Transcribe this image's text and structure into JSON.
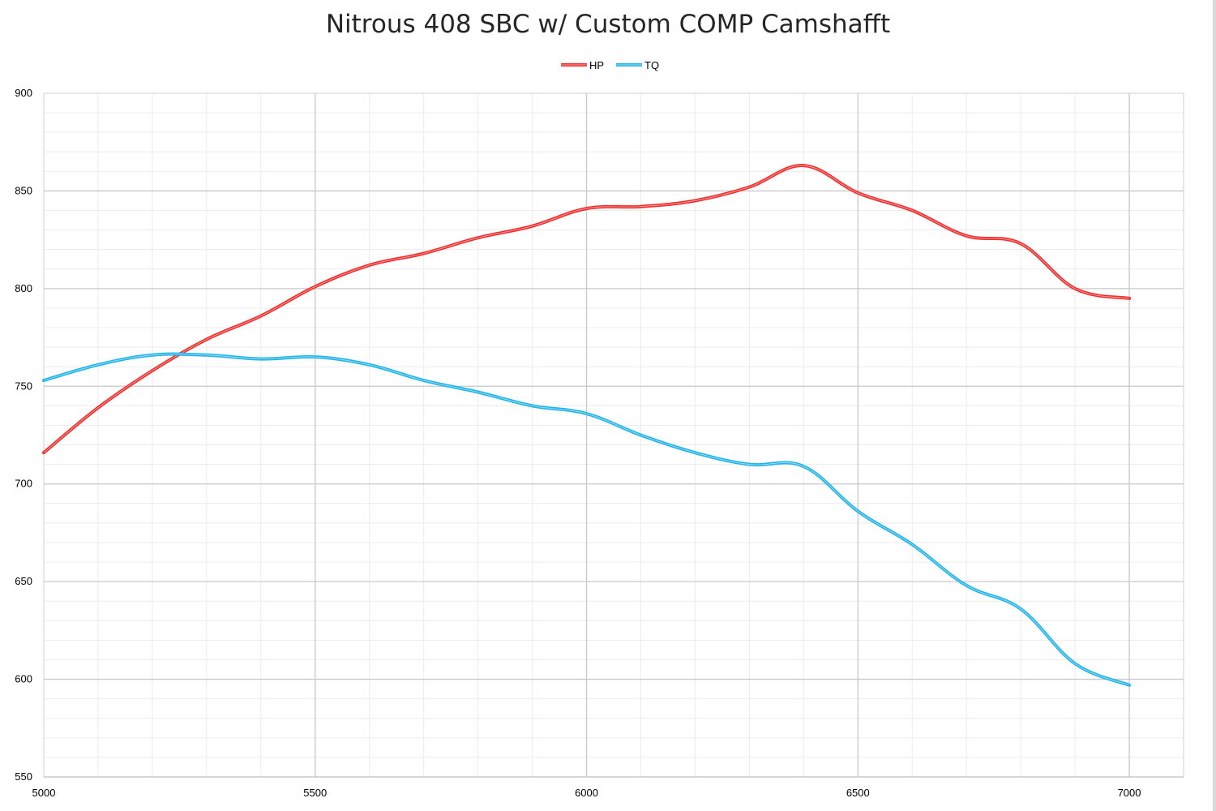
{
  "chart_data": {
    "type": "line",
    "title": "Nitrous 408 SBC w/ Custom COMP Camshafft",
    "xlabel": "",
    "ylabel": "",
    "xlim": [
      5000,
      7100
    ],
    "ylim": [
      550,
      900
    ],
    "x_ticks": [
      "5000",
      "5500",
      "6000",
      "6500",
      "7000"
    ],
    "y_ticks": [
      "550",
      "600",
      "650",
      "700",
      "750",
      "800",
      "850",
      "900"
    ],
    "x_major_step": 500,
    "x_minor_step": 100,
    "y_major_step": 50,
    "y_minor_step": 10,
    "grid": true,
    "legend_position": "top-center",
    "x": [
      5000,
      5100,
      5200,
      5300,
      5400,
      5500,
      5600,
      5700,
      5800,
      5900,
      6000,
      6100,
      6200,
      6300,
      6400,
      6500,
      6600,
      6700,
      6800,
      6900,
      7000
    ],
    "series": [
      {
        "name": "HP",
        "color": "#ee2d2d",
        "values": [
          716,
          739,
          758,
          774,
          786,
          801,
          812,
          818,
          826,
          832,
          841,
          842,
          845,
          852,
          863,
          849,
          840,
          827,
          823,
          800,
          795
        ]
      },
      {
        "name": "TQ",
        "color": "#21b4e8",
        "values": [
          753,
          761,
          766,
          766,
          764,
          765,
          761,
          753,
          747,
          740,
          736,
          725,
          716,
          710,
          709,
          686,
          669,
          648,
          636,
          608,
          597
        ]
      }
    ]
  }
}
